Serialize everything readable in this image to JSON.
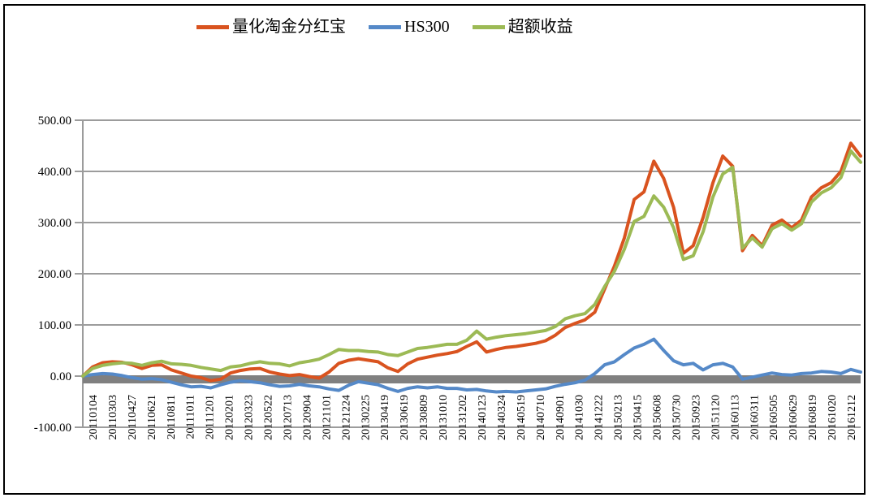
{
  "figure": {
    "background": "#ffffff",
    "border_color": "#000000"
  },
  "legend": {
    "items": [
      {
        "id": "fund",
        "label": "量化淘金分红宝",
        "color": "#d9531f"
      },
      {
        "id": "hs300",
        "label": "HS300",
        "color": "#5589c8"
      },
      {
        "id": "excess",
        "label": "超额收益",
        "color": "#9cba55"
      }
    ]
  },
  "chart_data": {
    "type": "line",
    "title": "",
    "xlabel": "",
    "ylabel": "",
    "ylim": [
      -100,
      500
    ],
    "grid": "horizontal",
    "gridline_color": "#9c9c9c",
    "zero_axis": {
      "value": 0,
      "color": "#808080",
      "thickness_px": 10
    },
    "y_ticks": [
      500,
      400,
      300,
      200,
      100,
      0,
      -100
    ],
    "y_tick_labels": [
      "500.00",
      "400.00",
      "300.00",
      "200.00",
      "100.00",
      "0.00",
      "-100.00"
    ],
    "categories": [
      "20110104",
      "20110303",
      "20110427",
      "20110621",
      "20110811",
      "20111011",
      "20111201",
      "20120201",
      "20120323",
      "20120522",
      "20120713",
      "20120904",
      "20121101",
      "20121224",
      "20130225",
      "20130419",
      "20130619",
      "20130809",
      "20131010",
      "20131202",
      "20140123",
      "20140324",
      "20140519",
      "20140710",
      "20140901",
      "20141030",
      "20141222",
      "20150213",
      "20150415",
      "20150608",
      "20150730",
      "20150923",
      "20151120",
      "20160113",
      "20160311",
      "20160505",
      "20160629",
      "20160819",
      "20161020",
      "20161212"
    ],
    "samples_per_category": 2,
    "series": [
      {
        "id": "fund",
        "name": "量化淘金分红宝",
        "color": "#d9531f",
        "values": [
          0,
          18,
          26,
          28,
          27,
          22,
          15,
          21,
          22,
          12,
          6,
          0,
          -3,
          -9,
          -6,
          6,
          11,
          14,
          15,
          8,
          4,
          1,
          3,
          -1,
          -4,
          8,
          25,
          31,
          34,
          31,
          28,
          16,
          9,
          24,
          33,
          37,
          41,
          44,
          48,
          58,
          67,
          47,
          52,
          56,
          58,
          61,
          64,
          69,
          80,
          95,
          103,
          110,
          125,
          170,
          215,
          270,
          345,
          360,
          420,
          386,
          330,
          240,
          255,
          310,
          378,
          430,
          410,
          245,
          275,
          255,
          295,
          305,
          290,
          305,
          350,
          368,
          378,
          400,
          455,
          430
        ]
      },
      {
        "id": "hs300",
        "name": "HS300",
        "color": "#5589c8",
        "values": [
          0,
          3,
          5,
          4,
          1,
          -3,
          -6,
          -5,
          -7,
          -12,
          -17,
          -21,
          -20,
          -23,
          -17,
          -12,
          -9,
          -11,
          -13,
          -17,
          -20,
          -19,
          -16,
          -19,
          -21,
          -25,
          -28,
          -18,
          -11,
          -14,
          -17,
          -24,
          -30,
          -24,
          -21,
          -23,
          -21,
          -24,
          -24,
          -27,
          -26,
          -29,
          -31,
          -30,
          -31,
          -29,
          -27,
          -25,
          -20,
          -16,
          -13,
          -8,
          5,
          22,
          28,
          42,
          55,
          62,
          72,
          50,
          30,
          22,
          25,
          12,
          22,
          25,
          18,
          -6,
          -2,
          2,
          6,
          3,
          2,
          5,
          6,
          9,
          8,
          5,
          13,
          8
        ]
      },
      {
        "id": "excess",
        "name": "超额收益",
        "color": "#9cba55",
        "values": [
          0,
          15,
          21,
          24,
          26,
          25,
          21,
          26,
          29,
          24,
          23,
          21,
          17,
          14,
          11,
          18,
          20,
          25,
          28,
          25,
          24,
          20,
          26,
          29,
          33,
          42,
          52,
          50,
          50,
          48,
          47,
          42,
          40,
          47,
          54,
          56,
          59,
          62,
          62,
          70,
          88,
          72,
          76,
          79,
          81,
          83,
          86,
          89,
          97,
          112,
          118,
          122,
          140,
          175,
          205,
          248,
          302,
          312,
          352,
          330,
          290,
          228,
          235,
          282,
          350,
          395,
          408,
          250,
          270,
          252,
          288,
          298,
          285,
          298,
          340,
          358,
          368,
          388,
          440,
          418
        ]
      }
    ]
  }
}
